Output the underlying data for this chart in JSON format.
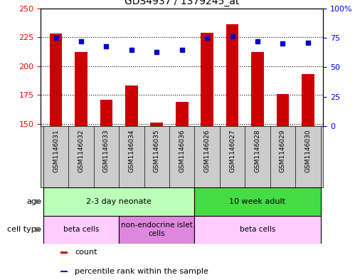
{
  "title": "GDS4937 / 1379245_at",
  "samples": [
    "GSM1146031",
    "GSM1146032",
    "GSM1146033",
    "GSM1146034",
    "GSM1146035",
    "GSM1146036",
    "GSM1146026",
    "GSM1146027",
    "GSM1146028",
    "GSM1146029",
    "GSM1146030"
  ],
  "counts": [
    228,
    212,
    171,
    183,
    151,
    169,
    229,
    236,
    212,
    176,
    193
  ],
  "percentiles": [
    75,
    72,
    68,
    65,
    63,
    65,
    75,
    76,
    72,
    70,
    71
  ],
  "ylim_left": [
    148,
    250
  ],
  "ylim_right": [
    0,
    100
  ],
  "yticks_left": [
    150,
    175,
    200,
    225,
    250
  ],
  "yticks_right": [
    0,
    25,
    50,
    75,
    100
  ],
  "bar_color": "#cc0000",
  "dot_color": "#0000cc",
  "age_groups": [
    {
      "label": "2-3 day neonate",
      "start": 0,
      "end": 5,
      "color": "#bbffbb"
    },
    {
      "label": "10 week adult",
      "start": 6,
      "end": 10,
      "color": "#44dd44"
    }
  ],
  "cell_type_groups": [
    {
      "label": "beta cells",
      "start": 0,
      "end": 2,
      "color": "#ffccff"
    },
    {
      "label": "non-endocrine islet\ncells",
      "start": 3,
      "end": 5,
      "color": "#dd88dd"
    },
    {
      "label": "beta cells",
      "start": 6,
      "end": 10,
      "color": "#ffccff"
    }
  ],
  "legend_items": [
    {
      "color": "#cc0000",
      "label": "count"
    },
    {
      "color": "#0000cc",
      "label": "percentile rank within the sample"
    }
  ],
  "xtick_bg": "#cccccc"
}
